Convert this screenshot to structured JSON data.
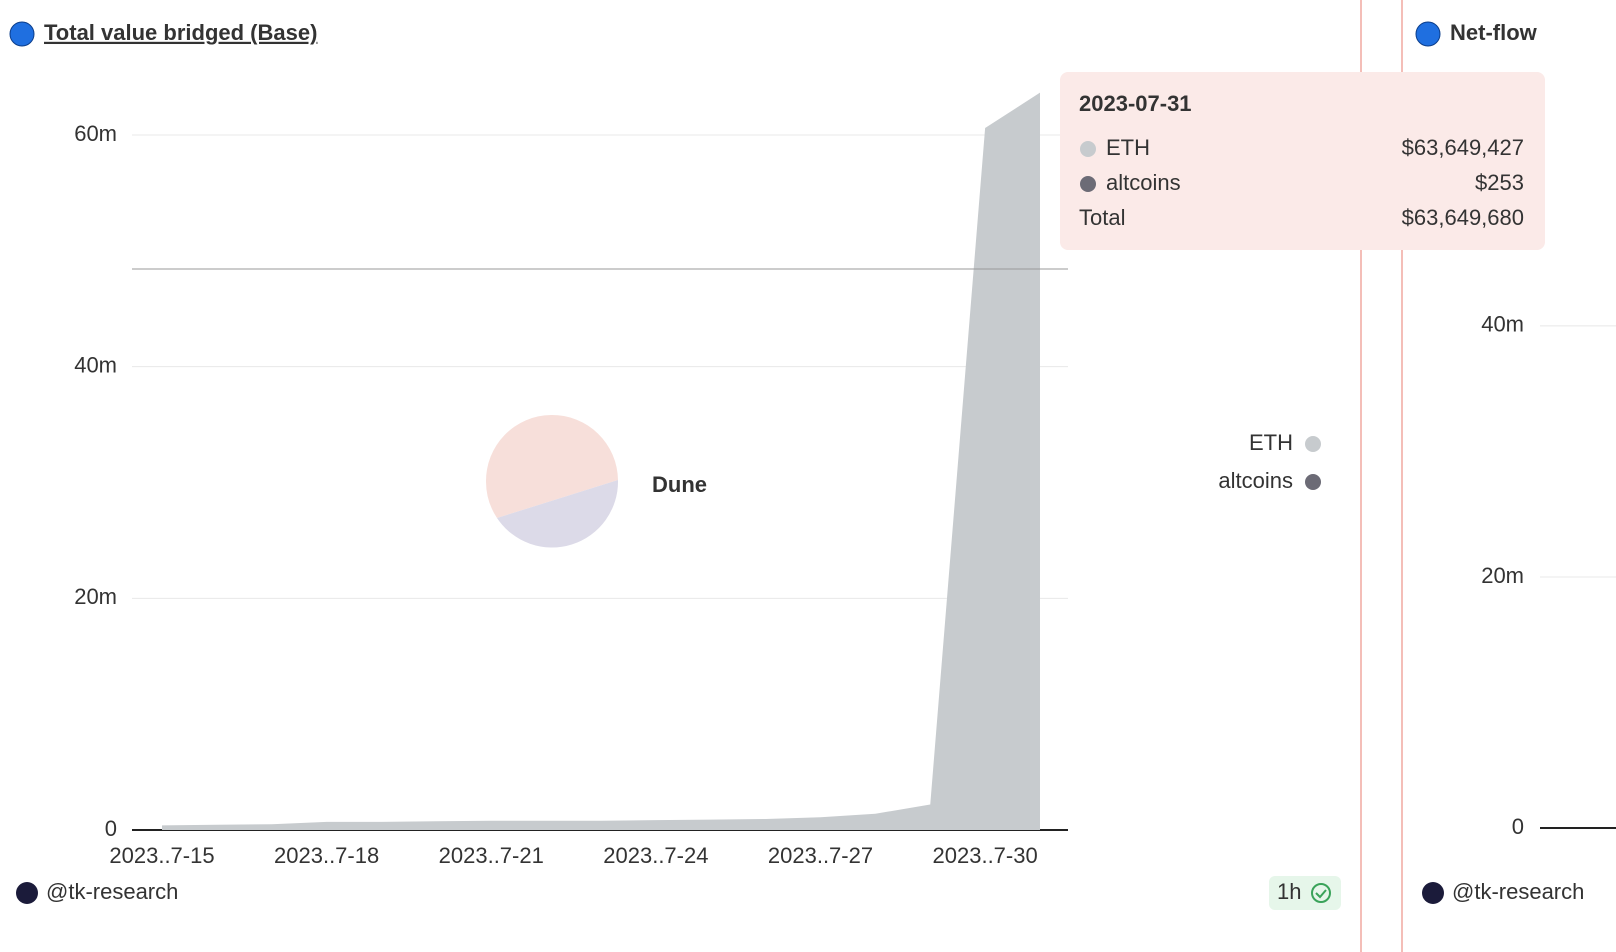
{
  "chart_data": [
    {
      "type": "area",
      "title": "Total value bridged (Base)",
      "categories": [
        "2023..7-15",
        null,
        null,
        "2023..7-18",
        null,
        null,
        "2023..7-21",
        null,
        null,
        "2023..7-24",
        null,
        null,
        "2023..7-27",
        null,
        null,
        "2023..7-30",
        null
      ],
      "series": [
        {
          "name": "ETH",
          "color": "#c7cbce",
          "values": [
            400000,
            450000,
            500000,
            700000,
            700000,
            750000,
            800000,
            800000,
            800000,
            850000,
            900000,
            950000,
            1100000,
            1400000,
            2200000,
            60600000,
            63649427
          ]
        },
        {
          "name": "altcoins",
          "color": "#6c6b76",
          "values": [
            150,
            160,
            170,
            180,
            180,
            190,
            200,
            200,
            210,
            210,
            220,
            220,
            230,
            240,
            245,
            250,
            253
          ]
        }
      ],
      "ylim": [
        0,
        64000000
      ],
      "yticks": [
        {
          "value": 0,
          "label": "0"
        },
        {
          "value": 20000000,
          "label": "20m"
        },
        {
          "value": 40000000,
          "label": "40m"
        },
        {
          "value": 60000000,
          "label": "60m"
        }
      ],
      "grid": true,
      "legend": "right",
      "author": "@tk-research",
      "refresh": "1h",
      "watermark": "Dune",
      "tooltip": {
        "title": "2023-07-31",
        "value_labels": [
          "$63,649,427",
          "$253"
        ],
        "total_name": "Total",
        "total_label": "$63,649,680"
      }
    },
    {
      "type": "area",
      "title": "Net-flow",
      "ylim": [
        0,
        58000000
      ],
      "yticks": [
        {
          "value": 0,
          "label": "0"
        },
        {
          "value": 20000000,
          "label": "20m"
        },
        {
          "value": 40000000,
          "label": "40m"
        }
      ],
      "grid": true,
      "author": "@tk-research"
    }
  ]
}
